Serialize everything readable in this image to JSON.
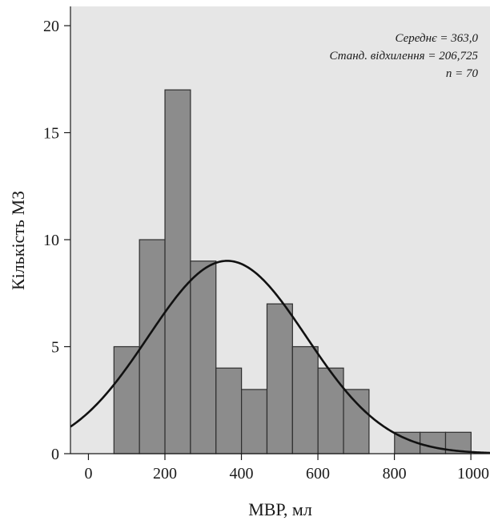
{
  "chart_data": {
    "type": "bar",
    "subtype": "histogram-with-normal-curve",
    "xlabel": "МВР, мл",
    "ylabel": "Кількість МЗ",
    "xlim": [
      -47,
      1050
    ],
    "ylim": [
      0,
      20.9
    ],
    "xticks": [
      0,
      200,
      400,
      600,
      800,
      1000
    ],
    "yticks": [
      0,
      5,
      10,
      15,
      20
    ],
    "bin_width": 66.7,
    "bins": [
      {
        "start": 66.7,
        "end": 133.4,
        "count": 5
      },
      {
        "start": 133.4,
        "end": 200.1,
        "count": 10
      },
      {
        "start": 200.1,
        "end": 266.8,
        "count": 17
      },
      {
        "start": 266.8,
        "end": 333.5,
        "count": 9
      },
      {
        "start": 333.5,
        "end": 400.2,
        "count": 4
      },
      {
        "start": 400.2,
        "end": 466.9,
        "count": 3
      },
      {
        "start": 466.9,
        "end": 533.6,
        "count": 7
      },
      {
        "start": 533.6,
        "end": 600.3,
        "count": 5
      },
      {
        "start": 600.3,
        "end": 667.0,
        "count": 4
      },
      {
        "start": 667.0,
        "end": 733.7,
        "count": 3
      },
      {
        "start": 733.7,
        "end": 800.4,
        "count": 0
      },
      {
        "start": 800.4,
        "end": 867.1,
        "count": 1
      },
      {
        "start": 867.1,
        "end": 933.8,
        "count": 1
      },
      {
        "start": 933.8,
        "end": 1000.5,
        "count": 1
      }
    ],
    "normal_curve": {
      "mean": 363.0,
      "sd": 206.725,
      "n": 70
    },
    "stats": {
      "mean": "Середнє = 363,0",
      "sd": "Станд. відхилення = 206,725",
      "n": "n = 70"
    },
    "grid": false,
    "colors": {
      "plot_background": "#e6e6e6",
      "bar_fill": "#8c8c8c",
      "bar_stroke": "#2e2e2e",
      "curve": "#111111"
    }
  }
}
